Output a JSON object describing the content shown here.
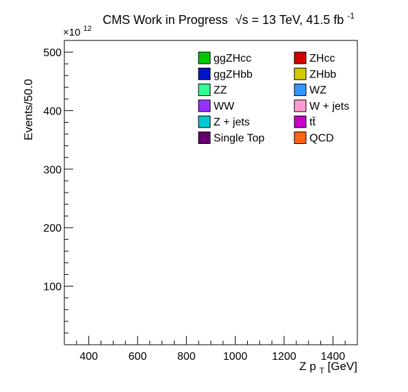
{
  "chart_data": {
    "type": "bar",
    "title_main": "CMS Work in Progress",
    "title_energy_prefix": "√s",
    "title_energy_rest": " = 13 TeV, 41.5 fb",
    "title_exponent": "-1",
    "xlabel_main": "Z p",
    "xlabel_sub": "T",
    "xlabel_unit": " [GeV]",
    "ylabel": "Events/50.0",
    "y_multiplier_base": "×10",
    "y_multiplier_exp": "12",
    "xlim": [
      300,
      1500
    ],
    "ylim": [
      0,
      520
    ],
    "x_ticks": [
      400,
      600,
      800,
      1000,
      1200,
      1400
    ],
    "y_ticks": [
      100,
      200,
      300,
      400,
      500
    ],
    "series": [
      {
        "name": "ggZHcc",
        "color": "#00c800",
        "values": []
      },
      {
        "name": "ZHcc",
        "color": "#d20000",
        "values": []
      },
      {
        "name": "ggZHbb",
        "color": "#0014c8",
        "values": []
      },
      {
        "name": "ZHbb",
        "color": "#d2c800",
        "values": []
      },
      {
        "name": "ZZ",
        "color": "#32ff96",
        "values": []
      },
      {
        "name": "WZ",
        "color": "#3296ff",
        "values": []
      },
      {
        "name": "WW",
        "color": "#9632ff",
        "values": []
      },
      {
        "name": "W + jets",
        "color": "#ff9bd2",
        "values": []
      },
      {
        "name": "Z + jets",
        "color": "#00c8d2",
        "values": []
      },
      {
        "name": "tt̄",
        "color": "#c800c8",
        "values": []
      },
      {
        "name": "Single Top",
        "color": "#64006e",
        "values": []
      },
      {
        "name": "QCD",
        "color": "#ff6414",
        "values": []
      }
    ],
    "legend_position": "top-right",
    "grid": false
  }
}
